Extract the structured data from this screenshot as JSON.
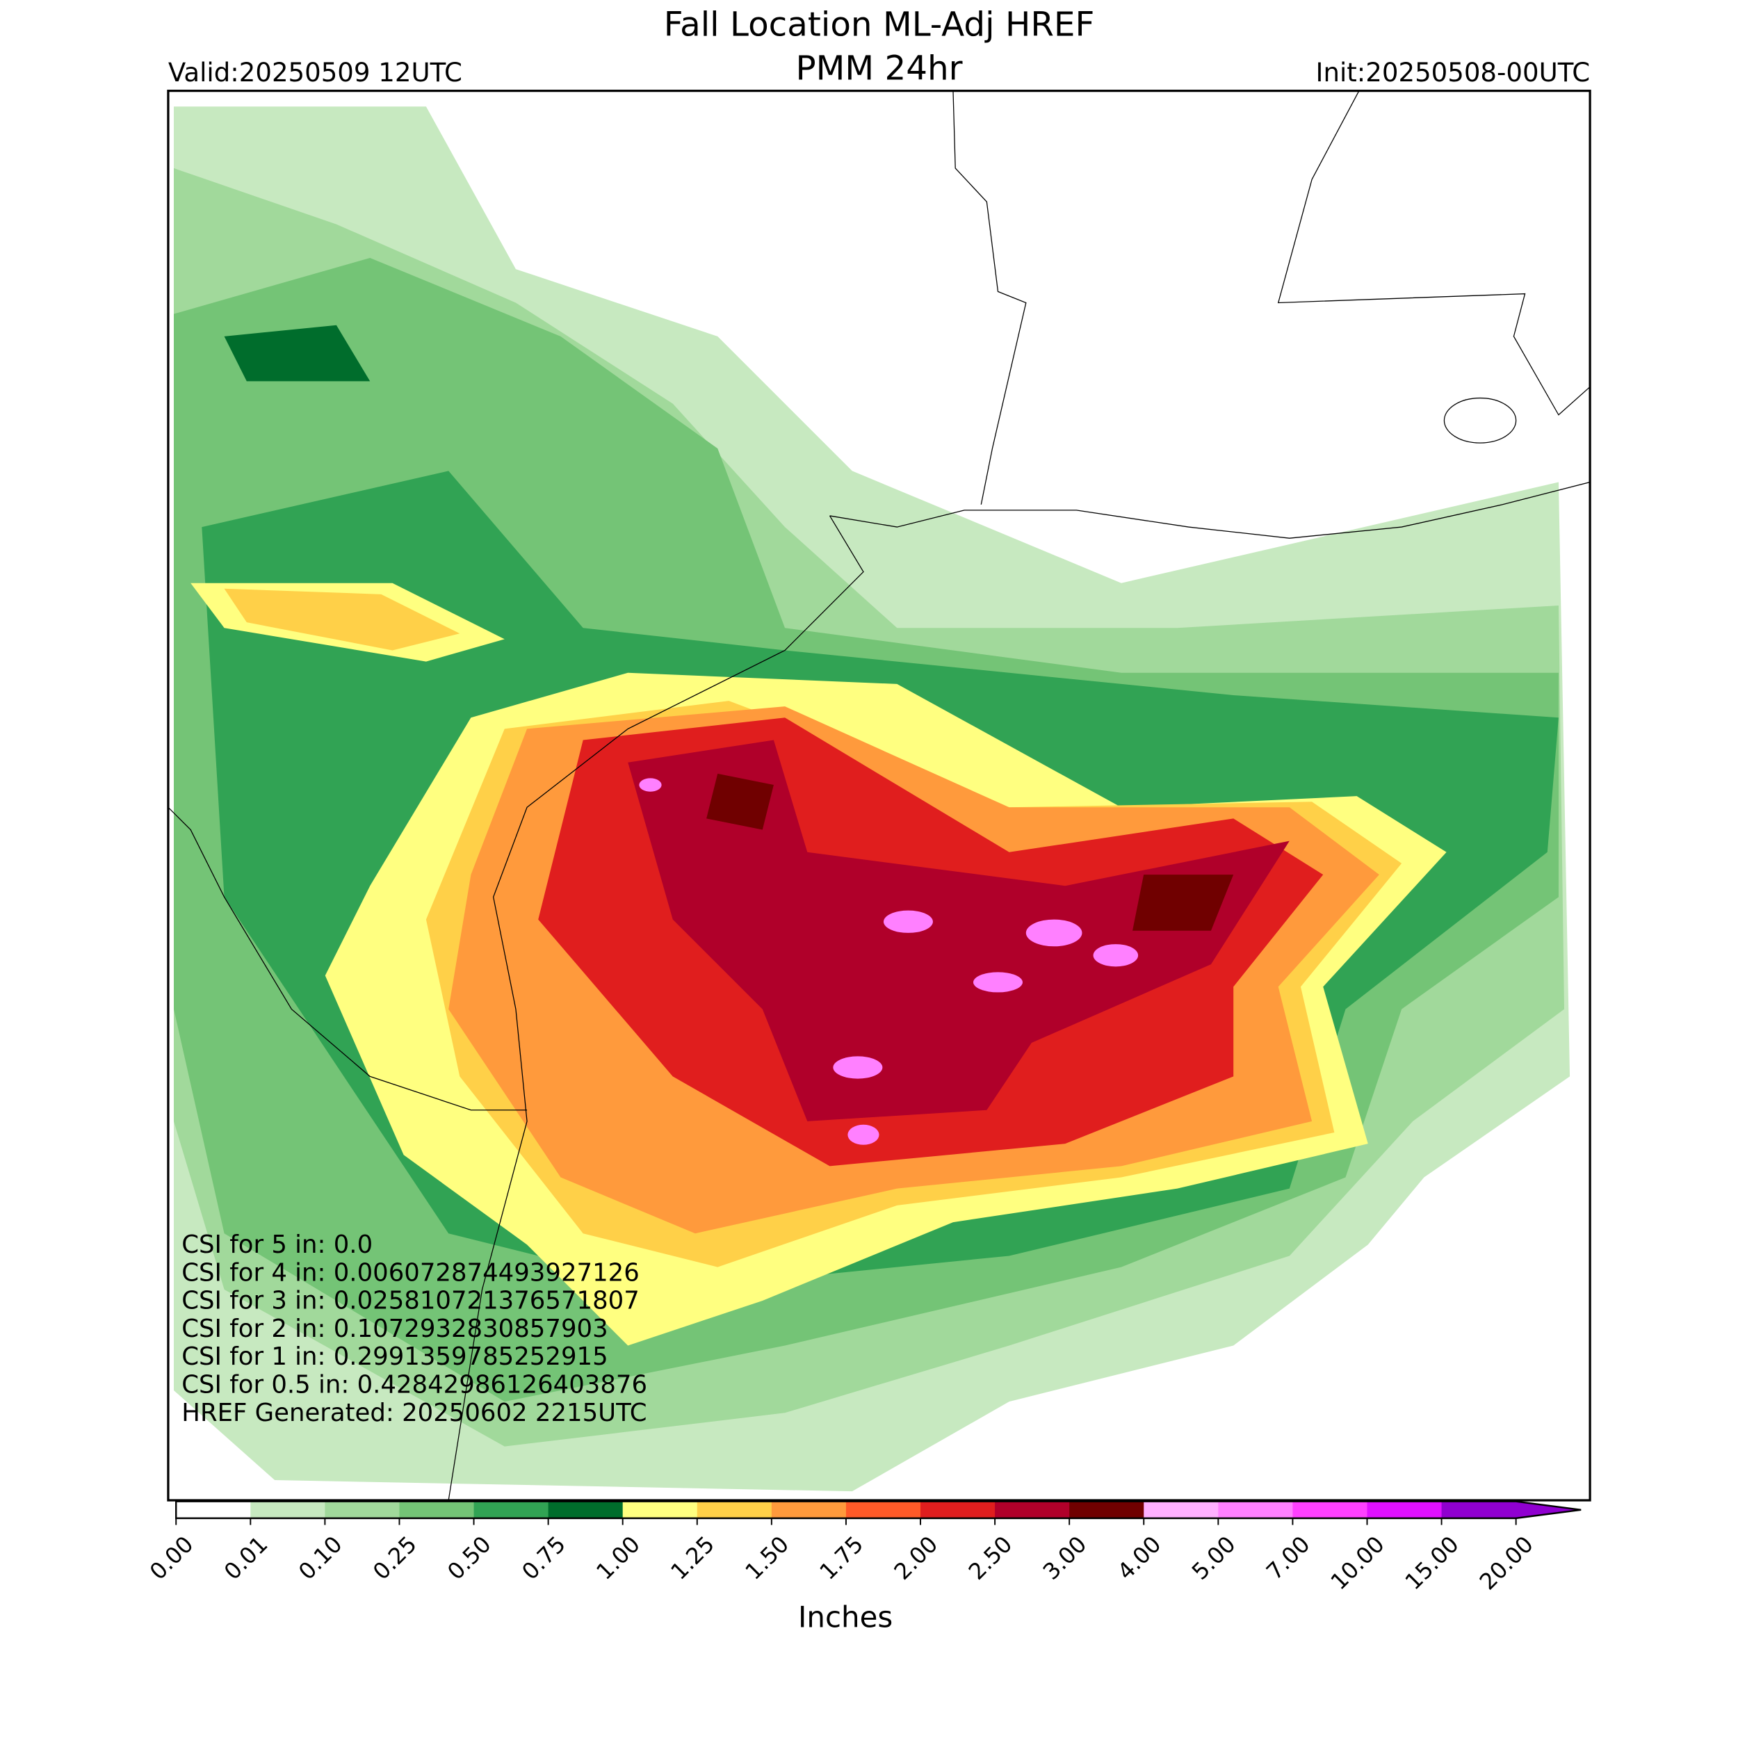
{
  "header": {
    "title": "Fall Location ML-Adj HREF",
    "subtitle": "PMM 24hr",
    "valid": "Valid:20250509 12UTC",
    "init": "Init:20250508-00UTC"
  },
  "annotations": [
    "CSI for 5 in: 0.0",
    "CSI for 4 in: 0.006072874493927126",
    "CSI for 3 in: 0.025810721376571807",
    "CSI for 2 in: 0.1072932830857903",
    "CSI for 1 in: 0.2991359785252915",
    "CSI for 0.5 in: 0.42842986126403876",
    "HREF Generated: 20250602 2215UTC"
  ],
  "colorbar": {
    "label": "Inches",
    "ticks": [
      "0.00",
      "0.01",
      "0.10",
      "0.25",
      "0.50",
      "0.75",
      "1.00",
      "1.25",
      "1.50",
      "1.75",
      "2.00",
      "2.50",
      "3.00",
      "4.00",
      "5.00",
      "7.00",
      "10.00",
      "15.00",
      "20.00"
    ],
    "colors": [
      "#ffffff",
      "#c7e9c0",
      "#a1d99b",
      "#74c476",
      "#31a354",
      "#006d2c",
      "#ffff80",
      "#ffd048",
      "#ff9a3c",
      "#ff5a28",
      "#e01e1e",
      "#b0002a",
      "#700000",
      "#ffb0ff",
      "#ff80ff",
      "#ff40ff",
      "#e010ff",
      "#9000d0"
    ]
  }
}
